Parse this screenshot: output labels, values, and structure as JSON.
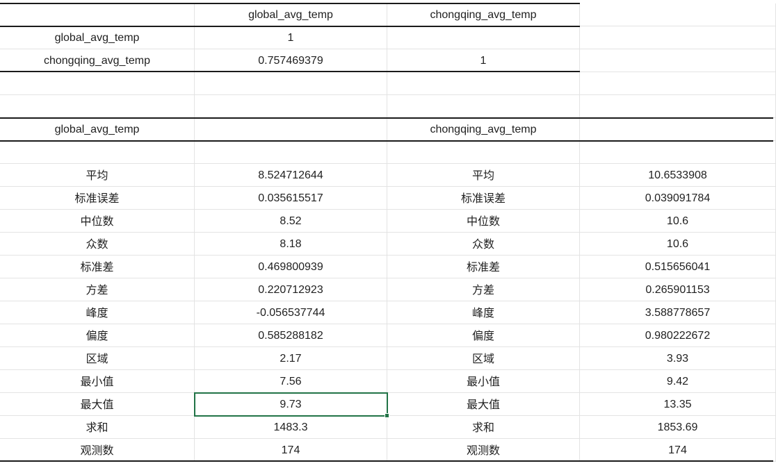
{
  "correlation": {
    "header": [
      "",
      "global_avg_temp",
      "chongqing_avg_temp"
    ],
    "rows": [
      [
        "global_avg_temp",
        "1",
        ""
      ],
      [
        "chongqing_avg_temp",
        "0.757469379",
        "1"
      ]
    ]
  },
  "descriptive": {
    "titles": [
      "global_avg_temp",
      "",
      "chongqing_avg_temp",
      ""
    ],
    "rows": [
      [
        "平均",
        "8.524712644",
        "平均",
        "10.6533908"
      ],
      [
        "标准误差",
        "0.035615517",
        "标准误差",
        "0.039091784"
      ],
      [
        "中位数",
        "8.52",
        "中位数",
        "10.6"
      ],
      [
        "众数",
        "8.18",
        "众数",
        "10.6"
      ],
      [
        "标准差",
        "0.469800939",
        "标准差",
        "0.515656041"
      ],
      [
        "方差",
        "0.220712923",
        "方差",
        "0.265901153"
      ],
      [
        "峰度",
        "-0.056537744",
        "峰度",
        "3.588778657"
      ],
      [
        "偏度",
        "0.585288182",
        "偏度",
        "0.980222672"
      ],
      [
        "区域",
        "2.17",
        "区域",
        "3.93"
      ],
      [
        "最小值",
        "7.56",
        "最小值",
        "9.42"
      ],
      [
        "最大值",
        "9.73",
        "最大值",
        "13.35"
      ],
      [
        "求和",
        "1483.3",
        "求和",
        "1853.69"
      ],
      [
        "观测数",
        "174",
        "观测数",
        "174"
      ]
    ]
  },
  "selection": {
    "color": "#217346"
  }
}
